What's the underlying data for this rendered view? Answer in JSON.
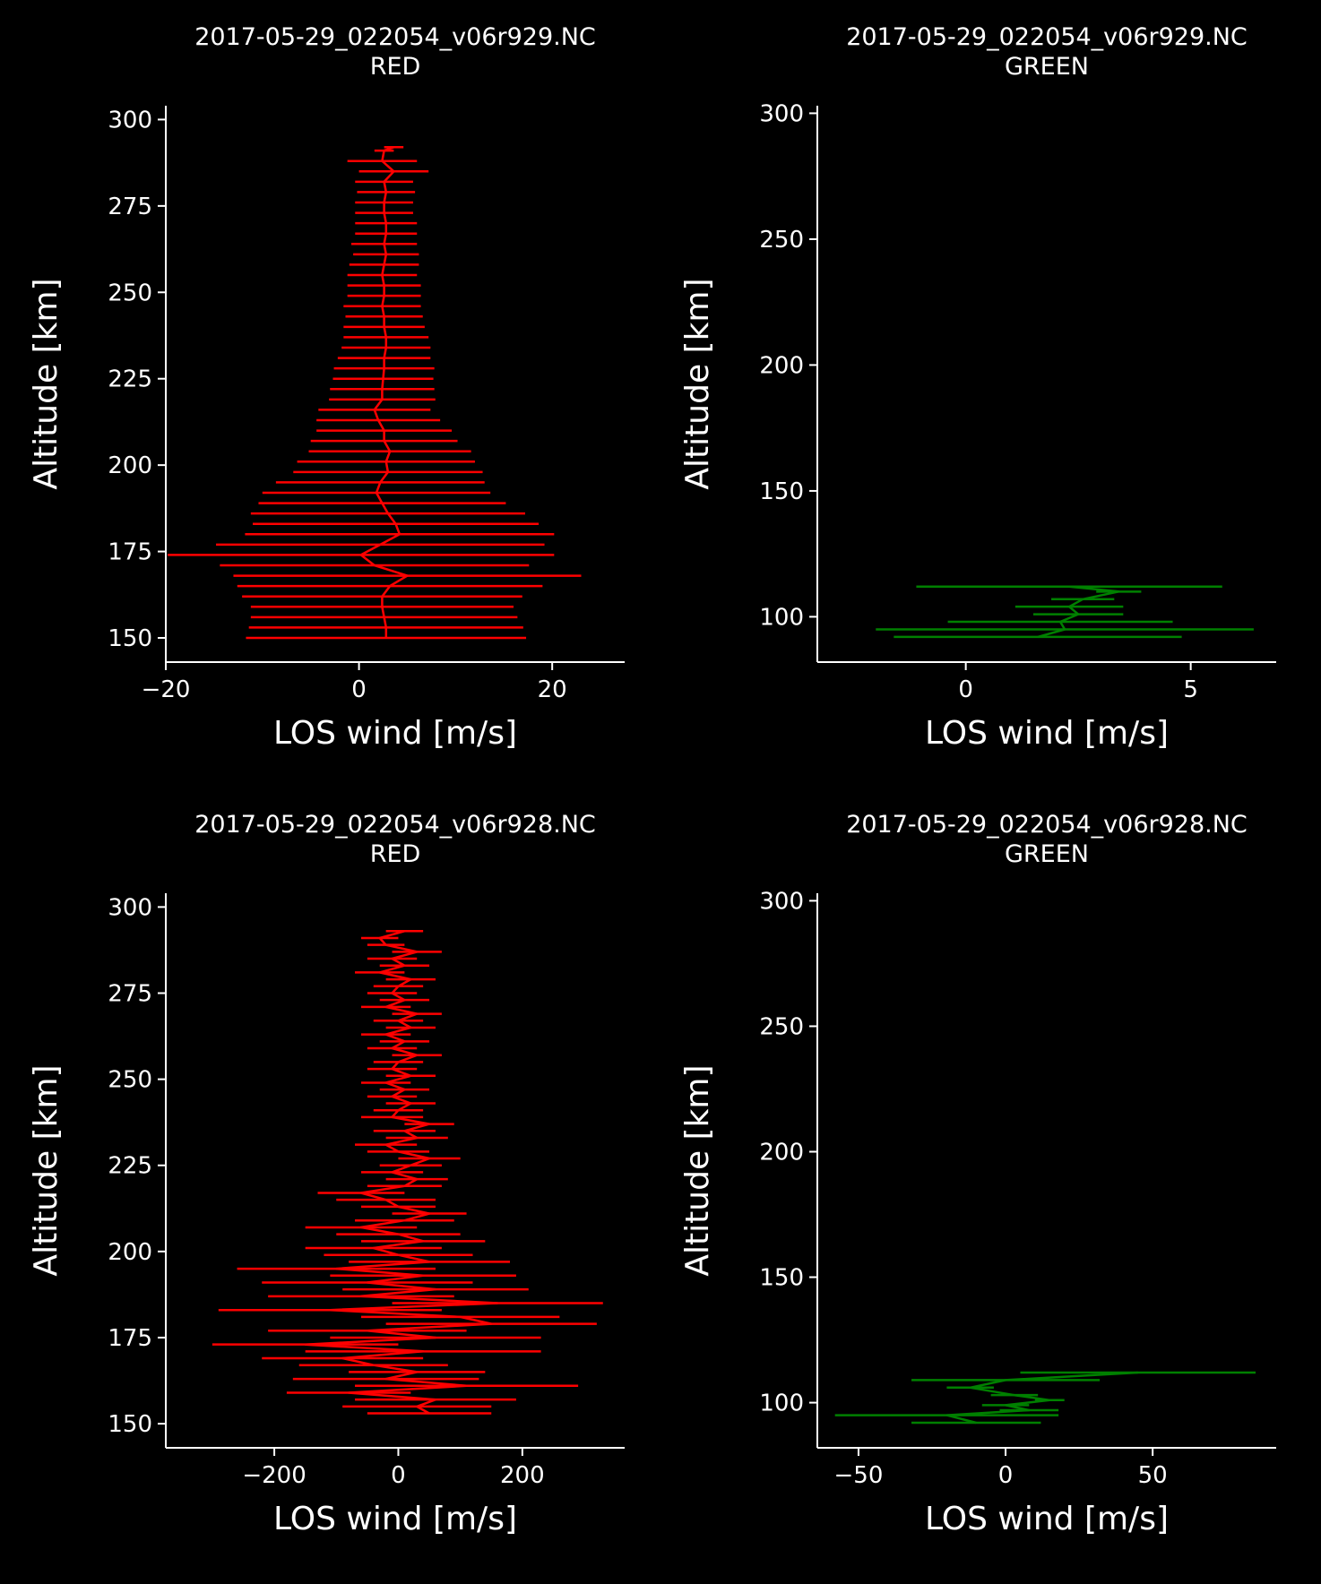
{
  "figure": {
    "background": "#000000",
    "foreground": "#ffffff"
  },
  "chart_data": [
    {
      "type": "line",
      "title": [
        "2017-05-29_022054_v06r929.NC",
        "RED"
      ],
      "xlabel": "LOS wind [m/s]",
      "ylabel": "Altitude [km]",
      "xlim": [
        -20,
        27.5
      ],
      "ylim": [
        143,
        304
      ],
      "xticks": [
        -20,
        0,
        20
      ],
      "xtick_labels": [
        "−20",
        "0",
        "20"
      ],
      "yticks": [
        150,
        175,
        200,
        225,
        250,
        275,
        300
      ],
      "yticks_labels": [
        "150",
        "175",
        "200",
        "225",
        "250",
        "275",
        "300"
      ],
      "color": "#ff0000",
      "grid": false,
      "series": [
        {
          "y": [
            150,
            153,
            156,
            159,
            162,
            165,
            168,
            171,
            174,
            177,
            180,
            183,
            186,
            189,
            192,
            195,
            198,
            201,
            204,
            207,
            210,
            213,
            216,
            219,
            222,
            225,
            228,
            231,
            234,
            237,
            240,
            243,
            246,
            249,
            252,
            255,
            258,
            261,
            264,
            267,
            270,
            273,
            276,
            279,
            282,
            285,
            288,
            291,
            292
          ],
          "x": [
            2.8,
            2.8,
            2.6,
            2.4,
            2.4,
            3.2,
            5.0,
            1.6,
            0.2,
            2.2,
            4.2,
            3.8,
            3.0,
            2.4,
            1.8,
            2.2,
            3.0,
            2.8,
            3.2,
            2.6,
            2.6,
            2.0,
            1.6,
            2.4,
            2.4,
            2.5,
            2.6,
            2.6,
            2.8,
            2.8,
            2.6,
            2.6,
            2.4,
            2.6,
            2.6,
            2.4,
            2.6,
            2.8,
            2.6,
            2.8,
            2.8,
            2.6,
            2.6,
            2.8,
            2.6,
            3.6,
            2.4,
            2.6,
            3.6
          ],
          "xerr": [
            14.5,
            14.2,
            13.8,
            13.6,
            14.5,
            15.8,
            18.0,
            16.0,
            20.0,
            17.0,
            16.0,
            14.8,
            14.2,
            12.8,
            11.8,
            10.8,
            9.8,
            9.2,
            8.4,
            7.6,
            7.0,
            6.4,
            5.8,
            5.5,
            5.4,
            5.2,
            5.2,
            4.8,
            4.6,
            4.4,
            4.2,
            4.0,
            4.0,
            3.8,
            3.8,
            3.6,
            3.6,
            3.4,
            3.4,
            3.2,
            3.2,
            3.0,
            3.0,
            3.0,
            3.0,
            3.6,
            3.6,
            1.0,
            1.0
          ]
        }
      ]
    },
    {
      "type": "line",
      "title": [
        "2017-05-29_022054_v06r929.NC",
        "GREEN"
      ],
      "xlabel": "LOS wind [m/s]",
      "ylabel": "Altitude [km]",
      "xlim": [
        -3.3,
        6.9
      ],
      "ylim": [
        82,
        303
      ],
      "xticks": [
        0,
        5
      ],
      "xtick_labels": [
        "0",
        "5"
      ],
      "yticks": [
        100,
        150,
        200,
        250,
        300
      ],
      "yticks_labels": [
        "100",
        "150",
        "200",
        "250",
        "300"
      ],
      "color": "#008000",
      "grid": false,
      "series": [
        {
          "y": [
            92,
            95,
            98,
            101,
            104,
            107,
            110,
            112
          ],
          "x": [
            1.6,
            2.2,
            2.1,
            2.5,
            2.3,
            2.6,
            3.4,
            2.3
          ],
          "xerr": [
            3.2,
            4.2,
            2.5,
            1.0,
            1.2,
            0.7,
            0.5,
            3.4
          ]
        }
      ]
    },
    {
      "type": "line",
      "title": [
        "2017-05-29_022054_v06r928.NC",
        "RED"
      ],
      "xlabel": "LOS wind [m/s]",
      "ylabel": "Altitude [km]",
      "xlim": [
        -375,
        365
      ],
      "ylim": [
        143,
        304
      ],
      "xticks": [
        -200,
        0,
        200
      ],
      "xtick_labels": [
        "−200",
        "0",
        "200"
      ],
      "yticks": [
        150,
        175,
        200,
        225,
        250,
        275,
        300
      ],
      "yticks_labels": [
        "150",
        "175",
        "200",
        "225",
        "250",
        "275",
        "300"
      ],
      "color": "#ff0000",
      "grid": false,
      "series": [
        {
          "y": [
            153,
            155,
            157,
            159,
            161,
            163,
            165,
            167,
            169,
            171,
            173,
            175,
            177,
            179,
            181,
            183,
            185,
            187,
            189,
            191,
            193,
            195,
            197,
            199,
            201,
            203,
            205,
            207,
            209,
            211,
            213,
            215,
            217,
            219,
            221,
            223,
            225,
            227,
            229,
            231,
            233,
            235,
            237,
            239,
            241,
            243,
            245,
            247,
            249,
            251,
            253,
            255,
            257,
            259,
            261,
            263,
            265,
            267,
            269,
            271,
            273,
            275,
            277,
            279,
            281,
            283,
            285,
            287,
            289,
            291,
            293
          ],
          "x": [
            50,
            30,
            60,
            -80,
            110,
            -20,
            30,
            -40,
            -90,
            40,
            -150,
            60,
            -50,
            150,
            100,
            -110,
            160,
            -60,
            60,
            -50,
            40,
            -100,
            50,
            0,
            -40,
            40,
            0,
            -60,
            10,
            50,
            0,
            -20,
            -60,
            10,
            30,
            -10,
            20,
            50,
            0,
            -20,
            30,
            10,
            50,
            -10,
            0,
            20,
            -10,
            10,
            -20,
            20,
            -10,
            0,
            30,
            -10,
            10,
            -20,
            20,
            0,
            30,
            -20,
            10,
            -10,
            0,
            20,
            -30,
            10,
            -10,
            30,
            -20,
            -30,
            10
          ],
          "xerr": [
            100,
            120,
            130,
            100,
            180,
            150,
            110,
            120,
            130,
            190,
            150,
            170,
            160,
            170,
            160,
            180,
            170,
            150,
            150,
            170,
            150,
            160,
            130,
            120,
            110,
            100,
            100,
            90,
            80,
            60,
            60,
            80,
            70,
            60,
            50,
            50,
            50,
            50,
            50,
            50,
            50,
            50,
            40,
            50,
            40,
            40,
            40,
            40,
            40,
            40,
            40,
            40,
            40,
            40,
            40,
            40,
            40,
            40,
            40,
            40,
            40,
            40,
            40,
            40,
            40,
            40,
            40,
            40,
            30,
            30,
            30
          ]
        }
      ]
    },
    {
      "type": "line",
      "title": [
        "2017-05-29_022054_v06r928.NC",
        "GREEN"
      ],
      "xlabel": "LOS wind [m/s]",
      "ylabel": "Altitude [km]",
      "xlim": [
        -64,
        92
      ],
      "ylim": [
        82,
        303
      ],
      "xticks": [
        -50,
        0,
        50
      ],
      "xtick_labels": [
        "−50",
        "0",
        "50"
      ],
      "yticks": [
        100,
        150,
        200,
        250,
        300
      ],
      "yticks_labels": [
        "100",
        "150",
        "200",
        "250",
        "300"
      ],
      "color": "#008000",
      "grid": false,
      "series": [
        {
          "y": [
            92,
            95,
            97,
            99,
            101,
            103,
            106,
            109,
            112
          ],
          "x": [
            -10,
            -20,
            8,
            0,
            15,
            3,
            -12,
            0,
            45
          ],
          "xerr": [
            22,
            38,
            10,
            8,
            5,
            8,
            8,
            32,
            40
          ]
        }
      ]
    }
  ]
}
